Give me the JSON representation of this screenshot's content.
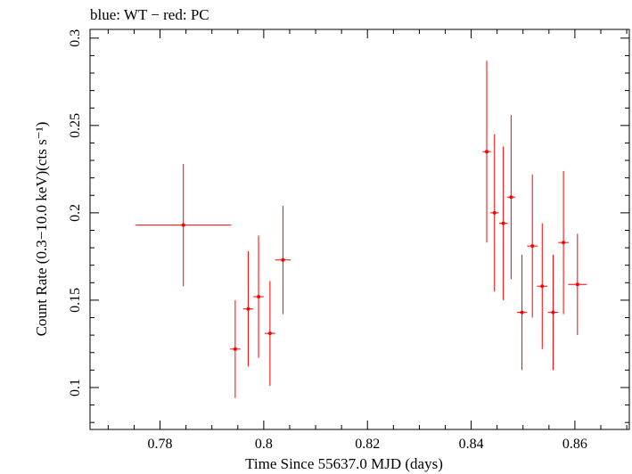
{
  "header_text": "blue: WT − red: PC",
  "chart_data": {
    "type": "scatter",
    "title": "",
    "xlabel": "Time Since 55637.0 MJD (days)",
    "ylabel": "Count Rate (0.3−10.0 keV)(cts s⁻¹)",
    "xlim": [
      0.7665,
      0.8705
    ],
    "ylim": [
      0.076,
      0.305
    ],
    "x_ticks": [
      0.78,
      0.8,
      0.82,
      0.84,
      0.86
    ],
    "x_tick_labels": [
      "0.78",
      "0.8",
      "0.82",
      "0.84",
      "0.86"
    ],
    "y_ticks": [
      0.1,
      0.15,
      0.2,
      0.25,
      0.3
    ],
    "y_tick_labels": [
      "0.1",
      "0.15",
      "0.2",
      "0.25",
      "0.3"
    ],
    "grid": false,
    "series": [
      {
        "color": "#ff0000",
        "points": [
          {
            "x": 0.7845,
            "y": 0.193,
            "xerr": 0.0092,
            "yerr_lo": 0.035,
            "yerr_hi": 0.035
          },
          {
            "x": 0.7945,
            "y": 0.122,
            "xerr": 0.001,
            "yerr_lo": 0.028,
            "yerr_hi": 0.028
          },
          {
            "x": 0.797,
            "y": 0.145,
            "xerr": 0.001,
            "yerr_lo": 0.033,
            "yerr_hi": 0.033
          },
          {
            "x": 0.799,
            "y": 0.152,
            "xerr": 0.001,
            "yerr_lo": 0.035,
            "yerr_hi": 0.035
          },
          {
            "x": 0.8012,
            "y": 0.131,
            "xerr": 0.001,
            "yerr_lo": 0.03,
            "yerr_hi": 0.03
          },
          {
            "x": 0.8037,
            "y": 0.173,
            "xerr": 0.0015,
            "yerr_lo": 0.031,
            "yerr_hi": 0.031
          },
          {
            "x": 0.843,
            "y": 0.235,
            "xerr": 0.0008,
            "yerr_lo": 0.052,
            "yerr_hi": 0.052
          },
          {
            "x": 0.8445,
            "y": 0.2,
            "xerr": 0.0008,
            "yerr_lo": 0.045,
            "yerr_hi": 0.045
          },
          {
            "x": 0.8462,
            "y": 0.194,
            "xerr": 0.0008,
            "yerr_lo": 0.044,
            "yerr_hi": 0.044
          },
          {
            "x": 0.8477,
            "y": 0.209,
            "xerr": 0.0008,
            "yerr_lo": 0.047,
            "yerr_hi": 0.047
          },
          {
            "x": 0.8498,
            "y": 0.143,
            "xerr": 0.001,
            "yerr_lo": 0.033,
            "yerr_hi": 0.033
          },
          {
            "x": 0.8518,
            "y": 0.181,
            "xerr": 0.001,
            "yerr_lo": 0.041,
            "yerr_hi": 0.041
          },
          {
            "x": 0.8537,
            "y": 0.158,
            "xerr": 0.001,
            "yerr_lo": 0.036,
            "yerr_hi": 0.036
          },
          {
            "x": 0.8558,
            "y": 0.143,
            "xerr": 0.001,
            "yerr_lo": 0.033,
            "yerr_hi": 0.033
          },
          {
            "x": 0.8578,
            "y": 0.183,
            "xerr": 0.001,
            "yerr_lo": 0.041,
            "yerr_hi": 0.041
          },
          {
            "x": 0.8605,
            "y": 0.159,
            "xerr": 0.0018,
            "yerr_lo": 0.029,
            "yerr_hi": 0.029
          }
        ]
      }
    ]
  }
}
